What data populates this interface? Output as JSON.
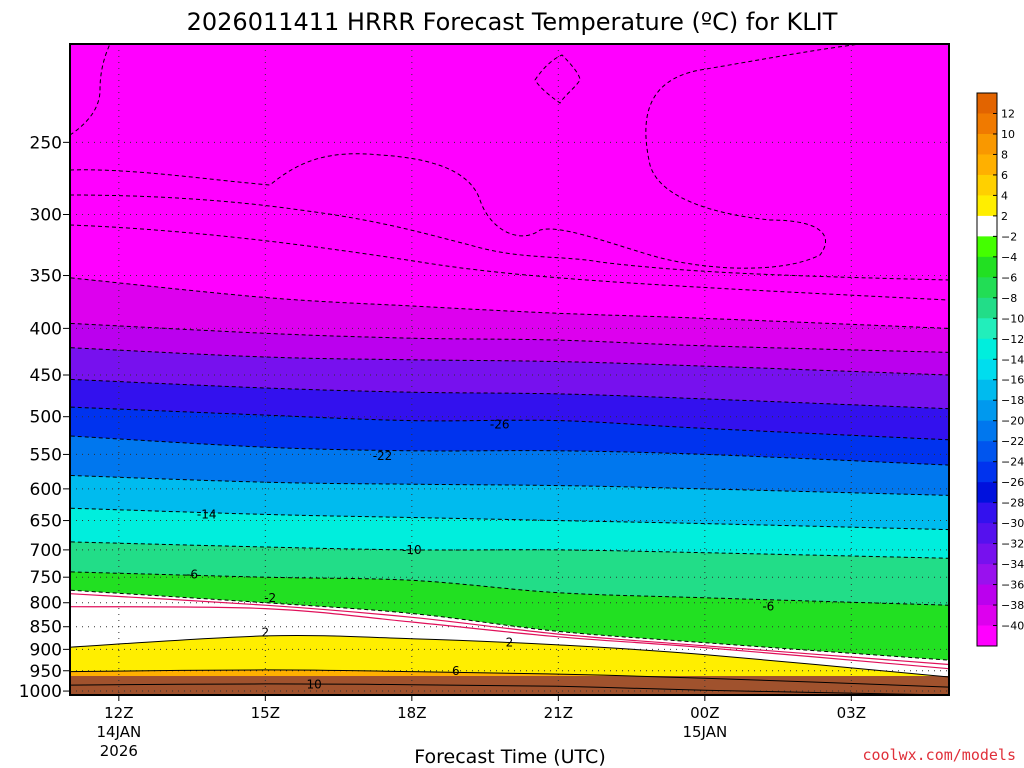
{
  "chart_data": {
    "type": "filled-contour",
    "title": "2026011411 HRRR Forecast Temperature (ºC) for KLIT",
    "xlabel": "Forecast Time (UTC)",
    "ylabel": "",
    "credit": "coolwx.com/models",
    "x_ticks": [
      {
        "label": "12Z",
        "hour": 0,
        "sub1": "14JAN",
        "sub2": "2026"
      },
      {
        "label": "15Z",
        "hour": 3,
        "sub1": "",
        "sub2": ""
      },
      {
        "label": "18Z",
        "hour": 6,
        "sub1": "",
        "sub2": ""
      },
      {
        "label": "21Z",
        "hour": 9,
        "sub1": "",
        "sub2": ""
      },
      {
        "label": "00Z",
        "hour": 12,
        "sub1": "15JAN",
        "sub2": ""
      },
      {
        "label": "03Z",
        "hour": 15,
        "sub1": "",
        "sub2": ""
      }
    ],
    "xlim_hours": [
      -1,
      17
    ],
    "ylim_hpa": [
      1010,
      195
    ],
    "y_ticks": [
      250,
      300,
      350,
      400,
      450,
      500,
      550,
      600,
      650,
      700,
      750,
      800,
      850,
      900,
      950,
      1000
    ],
    "hours": [
      -1,
      3,
      6,
      9,
      12,
      17
    ],
    "isotherm_pressure": [
      {
        "t": 10,
        "p": [
          985,
          982,
          984,
          988,
          998,
          1010
        ]
      },
      {
        "t": 6,
        "p": [
          952,
          948,
          952,
          958,
          968,
          990
        ]
      },
      {
        "t": 2,
        "p": [
          895,
          870,
          876,
          890,
          912,
          965
        ]
      },
      {
        "t": -2,
        "p": [
          775,
          800,
          822,
          860,
          885,
          925
        ]
      },
      {
        "t": -6,
        "p": [
          740,
          750,
          756,
          780,
          790,
          805
        ]
      },
      {
        "t": -10,
        "p": [
          686,
          695,
          700,
          700,
          705,
          715
        ]
      },
      {
        "t": -14,
        "p": [
          630,
          640,
          645,
          650,
          655,
          665
        ]
      },
      {
        "t": -18,
        "p": [
          580,
          590,
          593,
          595,
          600,
          610
        ]
      },
      {
        "t": -22,
        "p": [
          525,
          540,
          545,
          545,
          550,
          565
        ]
      },
      {
        "t": -26,
        "p": [
          488,
          498,
          505,
          505,
          515,
          530
        ]
      },
      {
        "t": -30,
        "p": [
          455,
          465,
          470,
          472,
          478,
          490
        ]
      },
      {
        "t": -34,
        "p": [
          420,
          430,
          433,
          435,
          440,
          450
        ]
      },
      {
        "t": -38,
        "p": [
          395,
          405,
          410,
          412,
          418,
          425
        ]
      },
      {
        "t": -40,
        "p": [
          352,
          370,
          378,
          385,
          390,
          400
        ]
      }
    ],
    "contour_labels": [
      {
        "value": "-26",
        "hour": 7.8,
        "p": 510
      },
      {
        "value": "-22",
        "hour": 5.4,
        "p": 552
      },
      {
        "value": "-14",
        "hour": 1.8,
        "p": 640
      },
      {
        "value": "-10",
        "hour": 6.0,
        "p": 700
      },
      {
        "value": "-6",
        "hour": 1.5,
        "p": 745
      },
      {
        "value": "-2",
        "hour": 3.1,
        "p": 790
      },
      {
        "value": "-6",
        "hour": 13.3,
        "p": 808
      },
      {
        "value": "2",
        "hour": 3.0,
        "p": 862
      },
      {
        "value": "2",
        "hour": 8.0,
        "p": 885
      },
      {
        "value": "6",
        "hour": 6.9,
        "p": 950
      },
      {
        "value": "10",
        "hour": 4.0,
        "p": 983
      }
    ],
    "colorbar": {
      "levels": [
        12,
        10,
        8,
        6,
        4,
        2,
        -2,
        -4,
        -6,
        -8,
        -10,
        -12,
        -14,
        -16,
        -18,
        -20,
        -22,
        -24,
        -26,
        -28,
        -30,
        -32,
        -34,
        -36,
        -38,
        -40
      ],
      "colors": [
        "#e26400",
        "#f07a00",
        "#f99800",
        "#ffb000",
        "#ffd000",
        "#ffee00",
        "#ffffff",
        "#44ff00",
        "#22e022",
        "#22dd55",
        "#22dd88",
        "#22eebb",
        "#00eedd",
        "#00ddee",
        "#00bbee",
        "#0099ee",
        "#0077ee",
        "#0055ee",
        "#0033ee",
        "#0011dd",
        "#3311ee",
        "#5511ee",
        "#7711ee",
        "#9911ee",
        "#bb00ee",
        "#dd00ee",
        "#ff00ff"
      ]
    }
  }
}
